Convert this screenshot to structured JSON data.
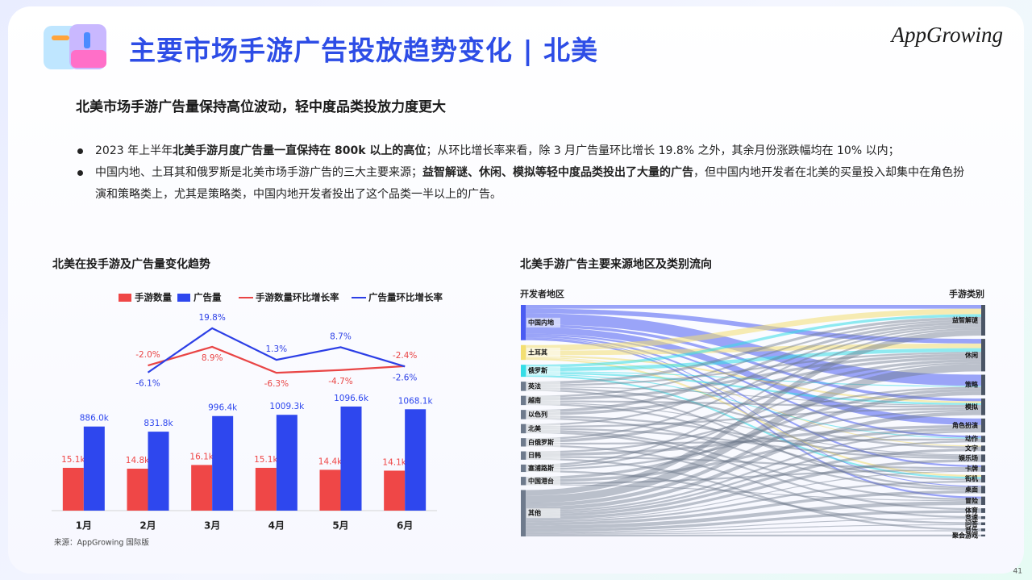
{
  "header": {
    "title": "主要市场手游广告投放趋势变化 | 北美",
    "logo": "AppGrowing"
  },
  "subtitle": "北美市场手游广告量保持高位波动，轻中度品类投放力度更大",
  "bullets": [
    [
      {
        "text": "2023 年上半年"
      },
      {
        "text": "北美手游月度广告量一直保持在 800k 以上的高位",
        "bold": true
      },
      {
        "text": "；从环比增长率来看，除 3 月广告量环比增长 19.8% 之外，其余月份涨跌幅均在 10% 以内；"
      }
    ],
    [
      {
        "text": "中国内地、土耳其和俄罗斯是北美市场手游广告的三大主要来源；"
      },
      {
        "text": "益智解谜、休闲、模拟等轻中度品类投出了大量的广告",
        "bold": true
      },
      {
        "text": "，但中国内地开发者在北美的买量投入却集中在角色扮演和策略类上，尤其是策略类，中国内地开发者投出了这个品类一半以上的广告。"
      }
    ]
  ],
  "chart_data": [
    {
      "type": "combo",
      "title": "北美在投手游及广告量变化趋势",
      "categories": [
        "1月",
        "2月",
        "3月",
        "4月",
        "5月",
        "6月"
      ],
      "ylim": [
        0,
        72
      ],
      "y2lim": [
        0,
        2150
      ],
      "y3lim": [
        -87,
        32.5
      ],
      "series": [
        {
          "name": "手游数量",
          "type": "bar",
          "axis": "y",
          "color": "#ef4747",
          "values": [
            15.1,
            14.8,
            16.1,
            15.1,
            14.4,
            14.1
          ],
          "value_labels": [
            "15.1k",
            "14.8k",
            "16.1k",
            "15.1k",
            "14.4k",
            "14.1k"
          ]
        },
        {
          "name": "广告量",
          "type": "bar",
          "axis": "y2",
          "color": "#2e47ee",
          "values": [
            886.0,
            831.8,
            996.4,
            1009.3,
            1096.6,
            1068.1
          ],
          "value_labels": [
            "886.0k",
            "831.8k",
            "996.4k",
            "1009.3k",
            "1096.6k",
            "1068.1k"
          ]
        },
        {
          "name": "手游数量环比增长率",
          "type": "line",
          "axis": "y3",
          "color": "#e94545",
          "values": [
            null,
            -2.0,
            8.9,
            -6.3,
            -4.7,
            -2.4
          ],
          "value_labels": [
            null,
            "-2.0%",
            "8.9%",
            "-6.3%",
            "-4.7%",
            "-2.4%"
          ]
        },
        {
          "name": "广告量环比增长率",
          "type": "line",
          "axis": "y3",
          "color": "#2c3fe6",
          "values": [
            null,
            -6.1,
            19.8,
            1.3,
            8.7,
            -2.6
          ],
          "value_labels": [
            null,
            "-6.1%",
            "19.8%",
            "1.3%",
            "8.7%",
            "-2.6%"
          ]
        }
      ]
    },
    {
      "type": "sankey",
      "title": "北美手游广告主要来源地区及类别流向",
      "source_label": "开发者地区",
      "target_label": "手游类别",
      "sources": [
        {
          "name": "中国内地",
          "color": "#4a5cf2"
        },
        {
          "name": "土耳其",
          "color": "#f3df72"
        },
        {
          "name": "俄罗斯",
          "color": "#35dde6"
        },
        {
          "name": "英法",
          "color": "#6e7a8c"
        },
        {
          "name": "越南",
          "color": "#6e7a8c"
        },
        {
          "name": "以色列",
          "color": "#6e7a8c"
        },
        {
          "name": "北美",
          "color": "#6e7a8c"
        },
        {
          "name": "白俄罗斯",
          "color": "#6e7a8c"
        },
        {
          "name": "日韩",
          "color": "#6e7a8c"
        },
        {
          "name": "塞浦路斯",
          "color": "#6e7a8c"
        },
        {
          "name": "中国港台",
          "color": "#6e7a8c"
        },
        {
          "name": "其他",
          "color": "#6e7a8c"
        }
      ],
      "targets": [
        "益智解谜",
        "休闲",
        "策略",
        "模拟",
        "角色扮演",
        "动作",
        "文字",
        "娱乐场",
        "卡牌",
        "街机",
        "桌面",
        "冒险",
        "体育",
        "竞速",
        "问答",
        "音乐",
        "聚会游戏"
      ],
      "target_color": "#4b5566",
      "links": [
        {
          "source": "中国内地",
          "target": "益智解谜",
          "value": 4
        },
        {
          "source": "中国内地",
          "target": "休闲",
          "value": 5
        },
        {
          "source": "中国内地",
          "target": "策略",
          "value": 12
        },
        {
          "source": "中国内地",
          "target": "模拟",
          "value": 3
        },
        {
          "source": "中国内地",
          "target": "角色扮演",
          "value": 7
        },
        {
          "source": "中国内地",
          "target": "动作",
          "value": 2
        },
        {
          "source": "中国内地",
          "target": "卡牌",
          "value": 2
        },
        {
          "source": "中国内地",
          "target": "桌面",
          "value": 1
        },
        {
          "source": "中国内地",
          "target": "冒险",
          "value": 2
        },
        {
          "source": "土耳其",
          "target": "益智解谜",
          "value": 6
        },
        {
          "source": "土耳其",
          "target": "休闲",
          "value": 5
        },
        {
          "source": "土耳其",
          "target": "模拟",
          "value": 2
        },
        {
          "source": "土耳其",
          "target": "文字",
          "value": 1
        },
        {
          "source": "土耳其",
          "target": "街机",
          "value": 2
        },
        {
          "source": "俄罗斯",
          "target": "益智解谜",
          "value": 3
        },
        {
          "source": "俄罗斯",
          "target": "休闲",
          "value": 4
        },
        {
          "source": "俄罗斯",
          "target": "策略",
          "value": 1
        },
        {
          "source": "俄罗斯",
          "target": "模拟",
          "value": 2
        },
        {
          "source": "俄罗斯",
          "target": "动作",
          "value": 1
        },
        {
          "source": "俄罗斯",
          "target": "街机",
          "value": 2
        },
        {
          "source": "英法",
          "target": "益智解谜",
          "value": 3
        },
        {
          "source": "英法",
          "target": "休闲",
          "value": 2
        },
        {
          "source": "英法",
          "target": "模拟",
          "value": 1
        },
        {
          "source": "英法",
          "target": "文字",
          "value": 2
        },
        {
          "source": "英法",
          "target": "桌面",
          "value": 2
        },
        {
          "source": "越南",
          "target": "益智解谜",
          "value": 2
        },
        {
          "source": "越南",
          "target": "休闲",
          "value": 3
        },
        {
          "source": "越南",
          "target": "模拟",
          "value": 2
        },
        {
          "source": "越南",
          "target": "娱乐场",
          "value": 1
        },
        {
          "source": "越南",
          "target": "街机",
          "value": 2
        },
        {
          "source": "以色列",
          "target": "益智解谜",
          "value": 3
        },
        {
          "source": "以色列",
          "target": "休闲",
          "value": 3
        },
        {
          "source": "以色列",
          "target": "娱乐场",
          "value": 2
        },
        {
          "source": "以色列",
          "target": "桌面",
          "value": 2
        },
        {
          "source": "北美",
          "target": "益智解谜",
          "value": 2
        },
        {
          "source": "北美",
          "target": "模拟",
          "value": 2
        },
        {
          "source": "北美",
          "target": "娱乐场",
          "value": 2
        },
        {
          "source": "北美",
          "target": "冒险",
          "value": 2
        },
        {
          "source": "北美",
          "target": "体育",
          "value": 2
        },
        {
          "source": "白俄罗斯",
          "target": "益智解谜",
          "value": 2
        },
        {
          "source": "白俄罗斯",
          "target": "休闲",
          "value": 3
        },
        {
          "source": "白俄罗斯",
          "target": "动作",
          "value": 2
        },
        {
          "source": "白俄罗斯",
          "target": "竞速",
          "value": 2
        },
        {
          "source": "日韩",
          "target": "策略",
          "value": 2
        },
        {
          "source": "日韩",
          "target": "角色扮演",
          "value": 3
        },
        {
          "source": "日韩",
          "target": "卡牌",
          "value": 2
        },
        {
          "source": "日韩",
          "target": "音乐",
          "value": 2
        },
        {
          "source": "塞浦路斯",
          "target": "益智解谜",
          "value": 2
        },
        {
          "source": "塞浦路斯",
          "target": "休闲",
          "value": 2
        },
        {
          "source": "塞浦路斯",
          "target": "模拟",
          "value": 2
        },
        {
          "source": "塞浦路斯",
          "target": "问答",
          "value": 2
        },
        {
          "source": "中国港台",
          "target": "策略",
          "value": 3
        },
        {
          "source": "中国港台",
          "target": "角色扮演",
          "value": 3
        },
        {
          "source": "中国港台",
          "target": "卡牌",
          "value": 2
        },
        {
          "source": "中国港台",
          "target": "冒险",
          "value": 1
        },
        {
          "source": "其他",
          "target": "益智解谜",
          "value": 6
        },
        {
          "source": "其他",
          "target": "休闲",
          "value": 8
        },
        {
          "source": "其他",
          "target": "策略",
          "value": 4
        },
        {
          "source": "其他",
          "target": "模拟",
          "value": 4
        },
        {
          "source": "其他",
          "target": "角色扮演",
          "value": 2
        },
        {
          "source": "其他",
          "target": "动作",
          "value": 2
        },
        {
          "source": "其他",
          "target": "文字",
          "value": 3
        },
        {
          "source": "其他",
          "target": "娱乐场",
          "value": 3
        },
        {
          "source": "其他",
          "target": "卡牌",
          "value": 1
        },
        {
          "source": "其他",
          "target": "街机",
          "value": 2
        },
        {
          "source": "其他",
          "target": "桌面",
          "value": 3
        },
        {
          "source": "其他",
          "target": "冒险",
          "value": 4
        },
        {
          "source": "其他",
          "target": "体育",
          "value": 3
        },
        {
          "source": "其他",
          "target": "竞速",
          "value": 1
        },
        {
          "source": "其他",
          "target": "问答",
          "value": 1
        },
        {
          "source": "其他",
          "target": "音乐",
          "value": 1
        },
        {
          "source": "其他",
          "target": "聚会游戏",
          "value": 2
        }
      ]
    }
  ],
  "footer": {
    "source": "来源：AppGrowing 国际版",
    "page": "41"
  }
}
